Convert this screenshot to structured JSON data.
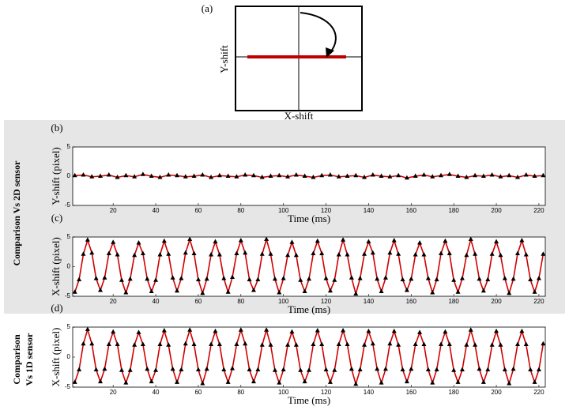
{
  "figure": {
    "panel_a": {
      "label": "(a)",
      "y_label": "Y-shift",
      "x_label": "X-shift"
    },
    "side_labels": [
      [
        "Comparison Vs 2D sensor"
      ],
      [
        "Comparison",
        "Vs 1D sensor"
      ]
    ]
  },
  "chart_data": [
    {
      "type": "line",
      "panel_label": "(b)",
      "x_label": "Time (ms)",
      "y_label": "Y-shift (pixel)",
      "xlim": [
        1,
        223
      ],
      "ylim": [
        -5,
        5
      ],
      "xticks": [
        20,
        40,
        60,
        80,
        100,
        120,
        140,
        160,
        180,
        200,
        220
      ],
      "yticks": [
        -5,
        0,
        5
      ],
      "x": [
        2,
        6,
        10,
        14,
        18,
        22,
        26,
        30,
        34,
        38,
        42,
        46,
        50,
        54,
        58,
        62,
        66,
        70,
        74,
        78,
        82,
        86,
        90,
        94,
        98,
        102,
        106,
        110,
        114,
        118,
        122,
        126,
        130,
        134,
        138,
        142,
        146,
        150,
        154,
        158,
        162,
        166,
        170,
        174,
        178,
        182,
        186,
        190,
        194,
        198,
        202,
        206,
        210,
        214,
        218,
        222
      ],
      "series": [
        {
          "color": "#d00000",
          "marker_color": "#000000",
          "values": [
            0.1,
            0.2,
            -0.1,
            0.0,
            0.2,
            -0.2,
            0.1,
            -0.1,
            0.3,
            0.0,
            -0.2,
            0.2,
            0.1,
            -0.1,
            0.0,
            0.2,
            -0.2,
            0.1,
            0.0,
            -0.1,
            0.2,
            0.1,
            -0.2,
            0.0,
            0.1,
            -0.1,
            0.2,
            0.0,
            -0.2,
            0.1,
            0.2,
            -0.1,
            0.0,
            0.1,
            -0.2,
            0.2,
            0.0,
            -0.1,
            0.1,
            -0.3,
            0.0,
            0.2,
            -0.1,
            0.1,
            0.3,
            0.0,
            -0.2,
            0.1,
            0.0,
            0.2,
            -0.1,
            0.1,
            -0.2,
            0.2,
            0.0,
            0.1
          ]
        }
      ]
    },
    {
      "type": "line",
      "panel_label": "(c)",
      "x_label": "Time (ms)",
      "y_label": "X-shift (pixel)",
      "xlim": [
        1,
        223
      ],
      "ylim": [
        -5,
        5
      ],
      "xticks": [
        20,
        40,
        60,
        80,
        100,
        120,
        140,
        160,
        180,
        200,
        220
      ],
      "yticks": [
        -5,
        0,
        5
      ],
      "x": [
        2,
        4,
        6,
        8,
        10,
        12,
        14,
        16,
        18,
        20,
        22,
        24,
        26,
        28,
        30,
        32,
        34,
        36,
        38,
        40,
        42,
        44,
        46,
        48,
        50,
        52,
        54,
        56,
        58,
        60,
        62,
        64,
        66,
        68,
        70,
        72,
        74,
        76,
        78,
        80,
        82,
        84,
        86,
        88,
        90,
        92,
        94,
        96,
        98,
        100,
        102,
        104,
        106,
        108,
        110,
        112,
        114,
        116,
        118,
        120,
        122,
        124,
        126,
        128,
        130,
        132,
        134,
        136,
        138,
        140,
        142,
        144,
        146,
        148,
        150,
        152,
        154,
        156,
        158,
        160,
        162,
        164,
        166,
        168,
        170,
        172,
        174,
        176,
        178,
        180,
        182,
        184,
        186,
        188,
        190,
        192,
        194,
        196,
        198,
        200,
        202,
        204,
        206,
        208,
        210,
        212,
        214,
        216,
        218,
        220,
        222
      ],
      "series": [
        {
          "color": "#d00000",
          "marker_color": "#000000",
          "values": [
            -4.3,
            -2.2,
            2.1,
            4.5,
            2.3,
            -2.0,
            -4.0,
            -1.9,
            2.2,
            4.1,
            2.0,
            -2.3,
            -4.4,
            -2.1,
            1.9,
            4.0,
            2.2,
            -2.1,
            -4.2,
            -2.3,
            2.0,
            4.3,
            2.1,
            -1.9,
            -4.1,
            -2.0,
            2.3,
            4.6,
            2.2,
            -2.2,
            -4.5,
            -2.1,
            2.0,
            4.2,
            2.0,
            -2.0,
            -4.3,
            -1.8,
            2.2,
            4.4,
            2.3,
            -2.2,
            -4.0,
            -2.2,
            2.1,
            4.6,
            2.1,
            -2.1,
            -4.4,
            -2.0,
            1.9,
            4.1,
            1.9,
            -2.3,
            -4.2,
            -2.1,
            2.2,
            4.3,
            2.2,
            -2.0,
            -4.1,
            -2.3,
            2.0,
            4.5,
            2.0,
            -1.9,
            -4.6,
            -2.0,
            2.1,
            4.2,
            2.3,
            -2.1,
            -4.2,
            -1.9,
            2.3,
            4.4,
            2.1,
            -2.2,
            -4.0,
            -2.1,
            2.0,
            4.0,
            2.0,
            -2.0,
            -4.4,
            -2.2,
            2.2,
            4.3,
            2.2,
            -2.3,
            -4.3,
            -2.0,
            1.9,
            4.6,
            2.1,
            -2.1,
            -4.1,
            -2.2,
            2.1,
            4.2,
            1.9,
            -2.0,
            -4.5,
            -2.1,
            2.2,
            4.4,
            2.0,
            -2.2,
            -4.3,
            -2.0,
            2.1
          ]
        }
      ]
    },
    {
      "type": "line",
      "panel_label": "(d)",
      "x_label": "Time (ms)",
      "y_label": "X-shift (pixel)",
      "xlim": [
        1,
        223
      ],
      "ylim": [
        -5,
        5
      ],
      "xticks": [
        20,
        40,
        60,
        80,
        100,
        120,
        140,
        160,
        180,
        200,
        220
      ],
      "yticks": [
        -5,
        0,
        5
      ],
      "x": [
        2,
        4,
        6,
        8,
        10,
        12,
        14,
        16,
        18,
        20,
        22,
        24,
        26,
        28,
        30,
        32,
        34,
        36,
        38,
        40,
        42,
        44,
        46,
        48,
        50,
        52,
        54,
        56,
        58,
        60,
        62,
        64,
        66,
        68,
        70,
        72,
        74,
        76,
        78,
        80,
        82,
        84,
        86,
        88,
        90,
        92,
        94,
        96,
        98,
        100,
        102,
        104,
        106,
        108,
        110,
        112,
        114,
        116,
        118,
        120,
        122,
        124,
        126,
        128,
        130,
        132,
        134,
        136,
        138,
        140,
        142,
        144,
        146,
        148,
        150,
        152,
        154,
        156,
        158,
        160,
        162,
        164,
        166,
        168,
        170,
        172,
        174,
        176,
        178,
        180,
        182,
        184,
        186,
        188,
        190,
        192,
        194,
        196,
        198,
        200,
        202,
        204,
        206,
        208,
        210,
        212,
        214,
        216,
        218,
        220,
        222
      ],
      "series": [
        {
          "color": "#d00000",
          "marker_color": "#000000",
          "values": [
            -4.2,
            -2.1,
            2.2,
            4.6,
            2.2,
            -2.1,
            -4.1,
            -2.0,
            2.1,
            4.2,
            2.1,
            -2.2,
            -4.3,
            -2.2,
            2.0,
            4.1,
            2.1,
            -2.0,
            -4.1,
            -2.2,
            2.1,
            4.4,
            2.0,
            -2.0,
            -4.2,
            -2.1,
            2.2,
            4.5,
            2.1,
            -2.1,
            -4.4,
            -2.0,
            2.1,
            4.3,
            2.1,
            -2.1,
            -4.2,
            -1.9,
            2.1,
            4.5,
            2.2,
            -2.1,
            -4.1,
            -2.1,
            2.0,
            4.5,
            2.0,
            -2.2,
            -4.3,
            -2.1,
            2.0,
            4.2,
            2.0,
            -2.2,
            -4.1,
            -2.2,
            2.1,
            4.4,
            2.1,
            -2.1,
            -4.2,
            -2.2,
            2.1,
            4.4,
            2.1,
            -2.0,
            -4.5,
            -2.1,
            2.0,
            4.3,
            2.2,
            -2.0,
            -4.3,
            -2.0,
            2.2,
            4.3,
            2.0,
            -2.1,
            -4.1,
            -2.0,
            2.1,
            4.1,
            2.1,
            -2.1,
            -4.3,
            -2.1,
            2.1,
            4.2,
            2.1,
            -2.2,
            -4.2,
            -2.1,
            2.0,
            4.5,
            2.0,
            -2.0,
            -4.2,
            -2.1,
            2.0,
            4.3,
            2.0,
            -2.1,
            -4.4,
            -2.0,
            2.1,
            4.3,
            2.1,
            -2.1,
            -4.2,
            -2.1,
            2.2
          ]
        }
      ]
    }
  ]
}
